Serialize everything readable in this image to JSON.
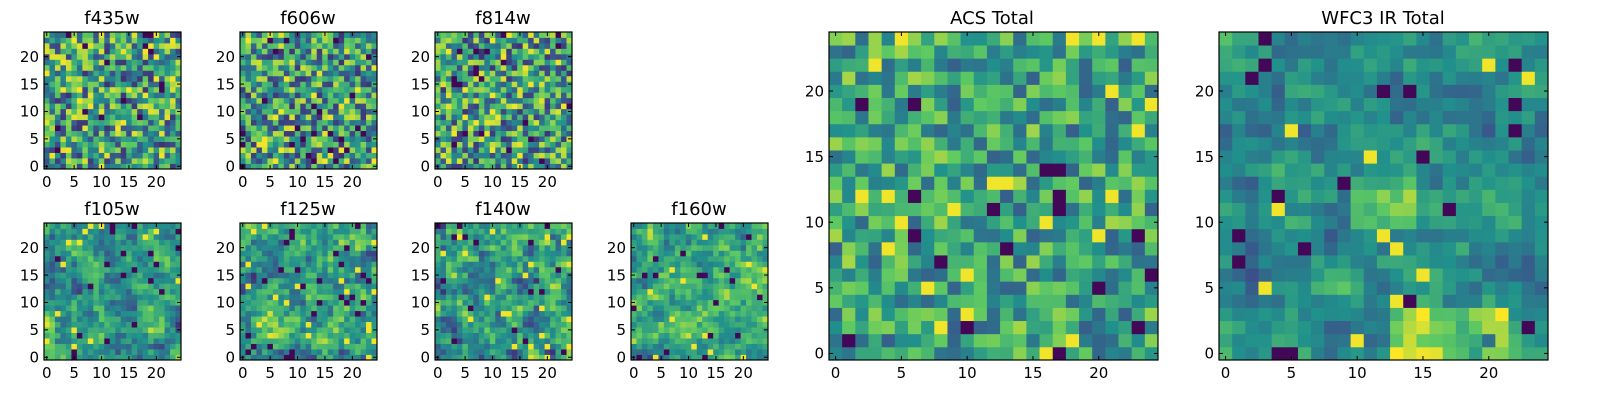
{
  "figure": {
    "background": "#ffffff"
  },
  "colormap": {
    "name": "viridis",
    "stops": [
      "#440154",
      "#3b528b",
      "#21918c",
      "#5ec962",
      "#fde725"
    ],
    "note_range": [
      0,
      1
    ]
  },
  "chart_data": [
    {
      "type": "heatmap",
      "title": "f435w",
      "grid": [
        25,
        25
      ],
      "texture": "pixel-noise",
      "seed": 11,
      "smooth": 0,
      "low_level": 0.2,
      "high_level": 0.85,
      "xlim": [
        -0.5,
        24.5
      ],
      "ylim": [
        -0.5,
        24.5
      ],
      "xticks": [
        0,
        5,
        10,
        15,
        20
      ],
      "yticks": [
        0,
        5,
        10,
        15,
        20
      ]
    },
    {
      "type": "heatmap",
      "title": "f606w",
      "grid": [
        25,
        25
      ],
      "texture": "pixel-noise",
      "seed": 23,
      "smooth": 0,
      "low_level": 0.2,
      "high_level": 0.85,
      "xlim": [
        -0.5,
        24.5
      ],
      "ylim": [
        -0.5,
        24.5
      ],
      "xticks": [
        0,
        5,
        10,
        15,
        20
      ],
      "yticks": [
        0,
        5,
        10,
        15,
        20
      ]
    },
    {
      "type": "heatmap",
      "title": "f814w",
      "grid": [
        25,
        25
      ],
      "texture": "pixel-noise",
      "seed": 37,
      "smooth": 0,
      "low_level": 0.2,
      "high_level": 0.85,
      "xlim": [
        -0.5,
        24.5
      ],
      "ylim": [
        -0.5,
        24.5
      ],
      "xticks": [
        0,
        5,
        10,
        15,
        20
      ],
      "yticks": [
        0,
        5,
        10,
        15,
        20
      ]
    },
    {
      "type": "heatmap",
      "title": "f105w",
      "grid": [
        25,
        25
      ],
      "texture": "smoothed-noise",
      "seed": 51,
      "smooth": 1,
      "low_level": 0.2,
      "high_level": 0.85,
      "xlim": [
        -0.5,
        24.5
      ],
      "ylim": [
        -0.5,
        24.5
      ],
      "xticks": [
        0,
        5,
        10,
        15,
        20
      ],
      "yticks": [
        0,
        5,
        10,
        15,
        20
      ]
    },
    {
      "type": "heatmap",
      "title": "f125w",
      "grid": [
        25,
        25
      ],
      "texture": "smoothed-noise",
      "seed": 67,
      "smooth": 1,
      "low_level": 0.2,
      "high_level": 0.85,
      "xlim": [
        -0.5,
        24.5
      ],
      "ylim": [
        -0.5,
        24.5
      ],
      "xticks": [
        0,
        5,
        10,
        15,
        20
      ],
      "yticks": [
        0,
        5,
        10,
        15,
        20
      ]
    },
    {
      "type": "heatmap",
      "title": "f140w",
      "grid": [
        25,
        25
      ],
      "texture": "smoothed-noise",
      "seed": 79,
      "smooth": 1,
      "low_level": 0.2,
      "high_level": 0.85,
      "xlim": [
        -0.5,
        24.5
      ],
      "ylim": [
        -0.5,
        24.5
      ],
      "xticks": [
        0,
        5,
        10,
        15,
        20
      ],
      "yticks": [
        0,
        5,
        10,
        15,
        20
      ]
    },
    {
      "type": "heatmap",
      "title": "f160w",
      "grid": [
        25,
        25
      ],
      "texture": "smoothed-noise",
      "seed": 97,
      "smooth": 1,
      "low_level": 0.2,
      "high_level": 0.85,
      "xlim": [
        -0.5,
        24.5
      ],
      "ylim": [
        -0.5,
        24.5
      ],
      "xticks": [
        0,
        5,
        10,
        15,
        20
      ],
      "yticks": [
        0,
        5,
        10,
        15,
        20
      ]
    },
    {
      "type": "heatmap",
      "title": "ACS Total",
      "grid": [
        25,
        25
      ],
      "texture": "pixel-noise",
      "seed": 131,
      "smooth": 0,
      "low_level": 0.35,
      "high_level": 0.8,
      "xlim": [
        -0.5,
        24.5
      ],
      "ylim": [
        -0.5,
        24.5
      ],
      "xticks": [
        0,
        5,
        10,
        15,
        20
      ],
      "yticks": [
        0,
        5,
        10,
        15,
        20
      ]
    },
    {
      "type": "heatmap",
      "title": "WFC3 IR Total",
      "grid": [
        25,
        25
      ],
      "texture": "smoothed-noise",
      "seed": 173,
      "smooth": 1,
      "low_level": 0.25,
      "high_level": 0.7,
      "bright_region": {
        "x_range": [
          13,
          21
        ],
        "y_range": [
          0,
          3
        ],
        "boost": 0.35
      },
      "central_blob": {
        "x_range": [
          10,
          14
        ],
        "y_range": [
          10,
          13
        ],
        "boost": 0.25
      },
      "xlim": [
        -0.5,
        24.5
      ],
      "ylim": [
        -0.5,
        24.5
      ],
      "xticks": [
        0,
        5,
        10,
        15,
        20
      ],
      "yticks": [
        0,
        5,
        10,
        15,
        20
      ]
    }
  ]
}
